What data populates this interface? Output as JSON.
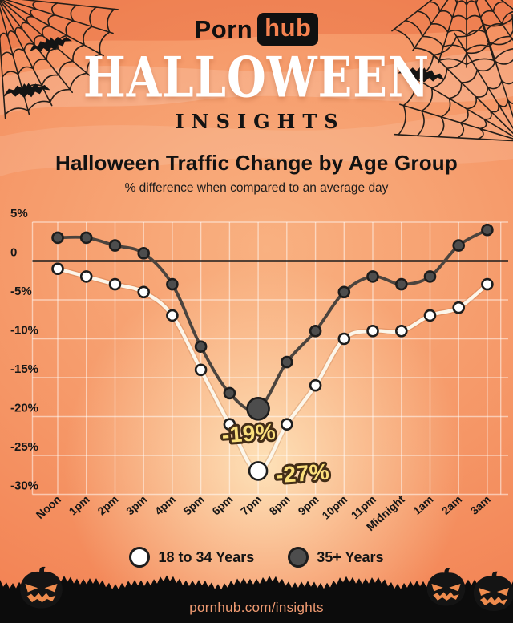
{
  "header": {
    "logo": {
      "prefix": "Porn",
      "suffix": "hub"
    },
    "main_title": "HALLOWEEN",
    "sub_title": "INSIGHTS"
  },
  "chart": {
    "title": "Halloween Traffic Change by Age Group",
    "subtitle": "% difference when compared to an average day"
  },
  "chart_data": {
    "type": "line",
    "title": "Halloween Traffic Change by Age Group",
    "subtitle": "% difference when compared to an average day",
    "categories": [
      "Noon",
      "1pm",
      "2pm",
      "3pm",
      "4pm",
      "5pm",
      "6pm",
      "7pm",
      "8pm",
      "9pm",
      "10pm",
      "11pm",
      "Midnight",
      "1am",
      "2am",
      "3am"
    ],
    "series": [
      {
        "name": "35+ Years",
        "line_color": "#4b443e",
        "dot_fill": "#4d4d4d",
        "values": [
          3,
          3,
          2,
          1,
          -3,
          -11,
          -17,
          -19,
          -13,
          -9,
          -4,
          -2,
          -3,
          -2,
          2,
          4
        ],
        "highlight": {
          "category": "7pm",
          "label": "-19%"
        }
      },
      {
        "name": "18 to 34 Years",
        "line_color": "#fcf6ea",
        "dot_fill": "#ffffff",
        "values": [
          -1,
          -2,
          -3,
          -4,
          -7,
          -14,
          -21,
          -27,
          -21,
          -16,
          -10,
          -9,
          -9,
          -7,
          -6,
          -3
        ],
        "highlight": {
          "category": "7pm",
          "label": "-27%"
        }
      }
    ],
    "y_ticks": [
      {
        "label": "5%",
        "value": 5
      },
      {
        "label": "0",
        "value": 0
      },
      {
        "label": "-5%",
        "value": -5
      },
      {
        "label": "-10%",
        "value": -10
      },
      {
        "label": "-15%",
        "value": -15
      },
      {
        "label": "-20%",
        "value": -20
      },
      {
        "label": "-25%",
        "value": -25
      },
      {
        "label": "-30%",
        "value": -30
      }
    ],
    "ylim": [
      -30,
      5
    ],
    "grid": true,
    "legend_position": "bottom"
  },
  "legend": {
    "items": [
      {
        "label": "18 to 34 Years",
        "swatch": "#ffffff"
      },
      {
        "label": "35+ Years",
        "swatch": "#4d4d4d"
      }
    ]
  },
  "footer": {
    "url": "pornhub.com/insights"
  },
  "colors": {
    "accent_orange": "#f2764a",
    "annotation_yellow": "#fbe07c",
    "annotation_outline": "#432d17",
    "zero_line": "#1c1c1c",
    "grid_line": "rgba(255,255,255,0.5)",
    "silhouette_black": "#141414",
    "pumpkin_face_orange": "#ef8c4e",
    "logo_hub_orange": "#f58250",
    "footer_text_orange": "#f09b72"
  }
}
